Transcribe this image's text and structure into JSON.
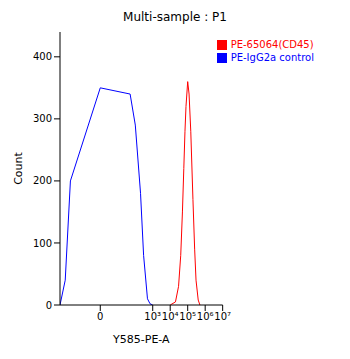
{
  "chart_data": {
    "type": "line",
    "title": "Multi-sample : P1",
    "x_label": "Y585-PE-A",
    "y_label": "Count",
    "log": "x",
    "legend": "upper right",
    "grid": false,
    "xlim": [
      -200,
      10000000
    ],
    "xticks": [
      0,
      {
        "value": 1000,
        "label": "10³"
      },
      {
        "value": 10000,
        "label": "10⁴"
      },
      {
        "value": 100000,
        "label": "10⁵"
      },
      {
        "value": 1000000,
        "label": "10⁶"
      },
      {
        "value": 10000000,
        "label": "10⁷"
      }
    ],
    "ylim": [
      0,
      440
    ],
    "yticks": [
      0,
      100,
      200,
      300,
      400
    ],
    "x": [
      -200,
      -100,
      -50,
      0,
      50,
      100,
      200,
      300,
      500,
      700,
      1000,
      2000,
      5000,
      10000,
      20000,
      30000,
      40000,
      50000,
      60000,
      70000,
      80000,
      100000,
      120000,
      150000,
      200000,
      250000,
      300000,
      400000,
      500000,
      1000000,
      10000000
    ],
    "series": [
      {
        "name": "PE-IgG2a control",
        "color": "#0000ff",
        "values": [
          0,
          40,
          200,
          350,
          340,
          290,
          180,
          80,
          10,
          2,
          0,
          null,
          null,
          null,
          null,
          null,
          null,
          null,
          null,
          null,
          null,
          null,
          null,
          null,
          null,
          null,
          null,
          null,
          null,
          null,
          null
        ]
      },
      {
        "name": "PE-65064(CD45)",
        "color": "#ff0000",
        "values": [
          null,
          null,
          null,
          null,
          null,
          null,
          null,
          null,
          null,
          null,
          null,
          null,
          null,
          0,
          5,
          30,
          80,
          150,
          220,
          280,
          320,
          360,
          340,
          280,
          170,
          90,
          40,
          8,
          0,
          null,
          null
        ]
      }
    ]
  }
}
